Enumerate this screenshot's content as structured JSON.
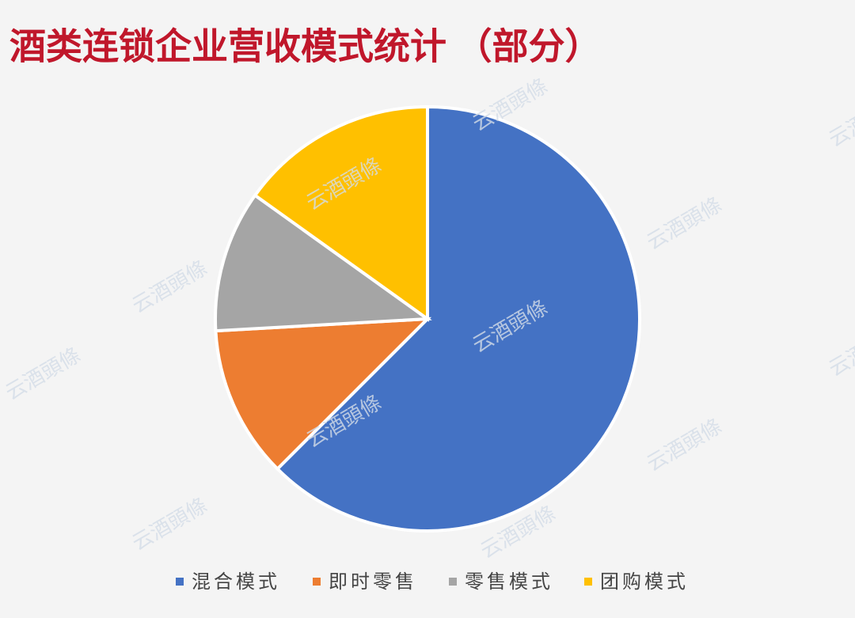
{
  "chart_data": {
    "type": "pie",
    "title": "酒类连锁企业营收模式统计 （部分）",
    "watermark": "云酒頭條",
    "categories": [
      "混合模式",
      "即时零售",
      "零售模式",
      "团购模式"
    ],
    "values": [
      62.5,
      11.6,
      10.8,
      15.1
    ],
    "colors": [
      "#4472c4",
      "#ed7d31",
      "#a5a5a5",
      "#ffc000"
    ],
    "legend": "bottom"
  }
}
